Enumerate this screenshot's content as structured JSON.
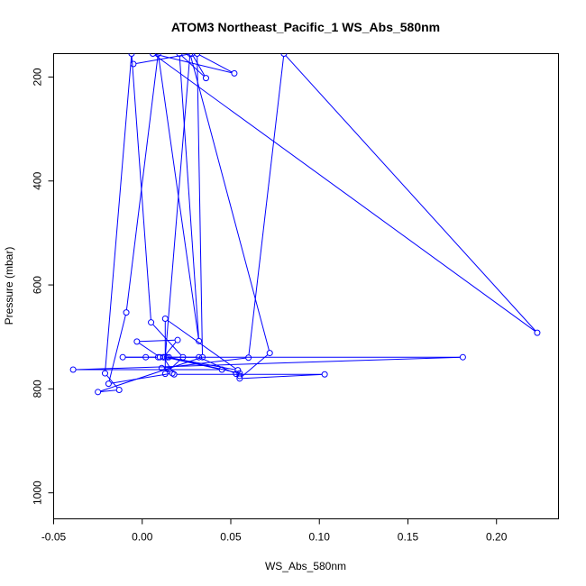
{
  "chart_data": {
    "type": "scatter",
    "title": "ATOM3 Northeast_Pacific_1 WS_Abs_580nm",
    "xlabel": "WS_Abs_580nm",
    "ylabel": "Pressure (mbar)",
    "xlim": [
      -0.05,
      0.235
    ],
    "ylim": [
      1050,
      155
    ],
    "y_reversed": true,
    "x_ticks": [
      -0.05,
      0.0,
      0.05,
      0.1,
      0.15,
      0.2
    ],
    "x_tick_labels": [
      "-0.05",
      "0.00",
      "0.05",
      "0.10",
      "0.15",
      "0.20"
    ],
    "y_ticks": [
      200,
      400,
      600,
      800,
      1000
    ],
    "y_tick_labels": [
      "200",
      "400",
      "600",
      "800",
      "1000"
    ],
    "grid": false,
    "line_color": "#0000ff",
    "marker": "open-circle",
    "series": [
      {
        "x": [
          -0.005,
          0.028,
          0.036,
          0.021,
          0.032,
          0.009,
          -0.009,
          -0.019,
          0.017,
          0.011,
          0.06,
          0.08,
          0.223,
          0.006,
          0.052,
          0.031,
          0.034,
          -0.025,
          -0.013,
          -0.021,
          -0.006,
          0.005,
          0.023,
          0.013,
          0.013,
          0.054,
          0.014,
          0.181,
          -0.039,
          0.045,
          0.013,
          0.027,
          0.072,
          0.055,
          0.103,
          0.018,
          0.012,
          0.009,
          0.002,
          -0.011,
          0.01,
          -0.003,
          0.02,
          0.012,
          0.032,
          0.053,
          0.055,
          0.055,
          0.015
        ],
        "y": [
          175,
          155,
          202,
          155,
          708,
          155,
          653,
          790,
          770,
          760,
          740,
          155,
          692,
          155,
          193,
          155,
          739,
          806,
          802,
          770,
          155,
          672,
          739,
          771,
          665,
          764,
          739,
          739,
          763,
          763,
          739,
          155,
          731,
          780,
          772,
          772,
          739,
          739,
          739,
          739,
          739,
          709,
          706,
          739,
          739,
          771,
          775,
          770,
          739
        ]
      }
    ]
  }
}
